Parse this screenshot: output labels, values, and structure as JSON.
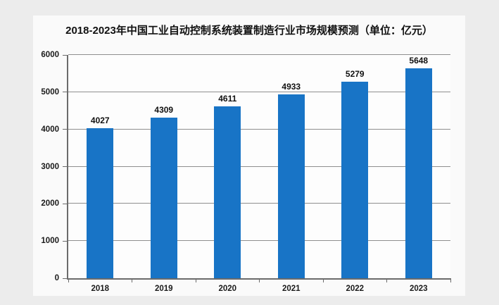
{
  "chart_data": {
    "type": "bar",
    "title": "2018-2023年中国工业自动控制系统装置制造行业市场规模预测（单位：亿元）",
    "categories": [
      "2018",
      "2019",
      "2020",
      "2021",
      "2022",
      "2023"
    ],
    "values": [
      4027,
      4309,
      4611,
      4933,
      5279,
      5648
    ],
    "xlabel": "",
    "ylabel": "",
    "ylim": [
      0,
      6000
    ],
    "yticks": [
      0,
      1000,
      2000,
      3000,
      4000,
      5000,
      6000
    ],
    "grid": true,
    "legend": "none",
    "data_labels": true,
    "colors": {
      "bar": "#1874C6",
      "page_background": "#ECECEC",
      "panel_background": "#FAFAFA",
      "plot_background": "#FDFDFD",
      "gridline": "#8F8F8F",
      "axis": "#6B6B6B",
      "text": "#111111"
    }
  }
}
